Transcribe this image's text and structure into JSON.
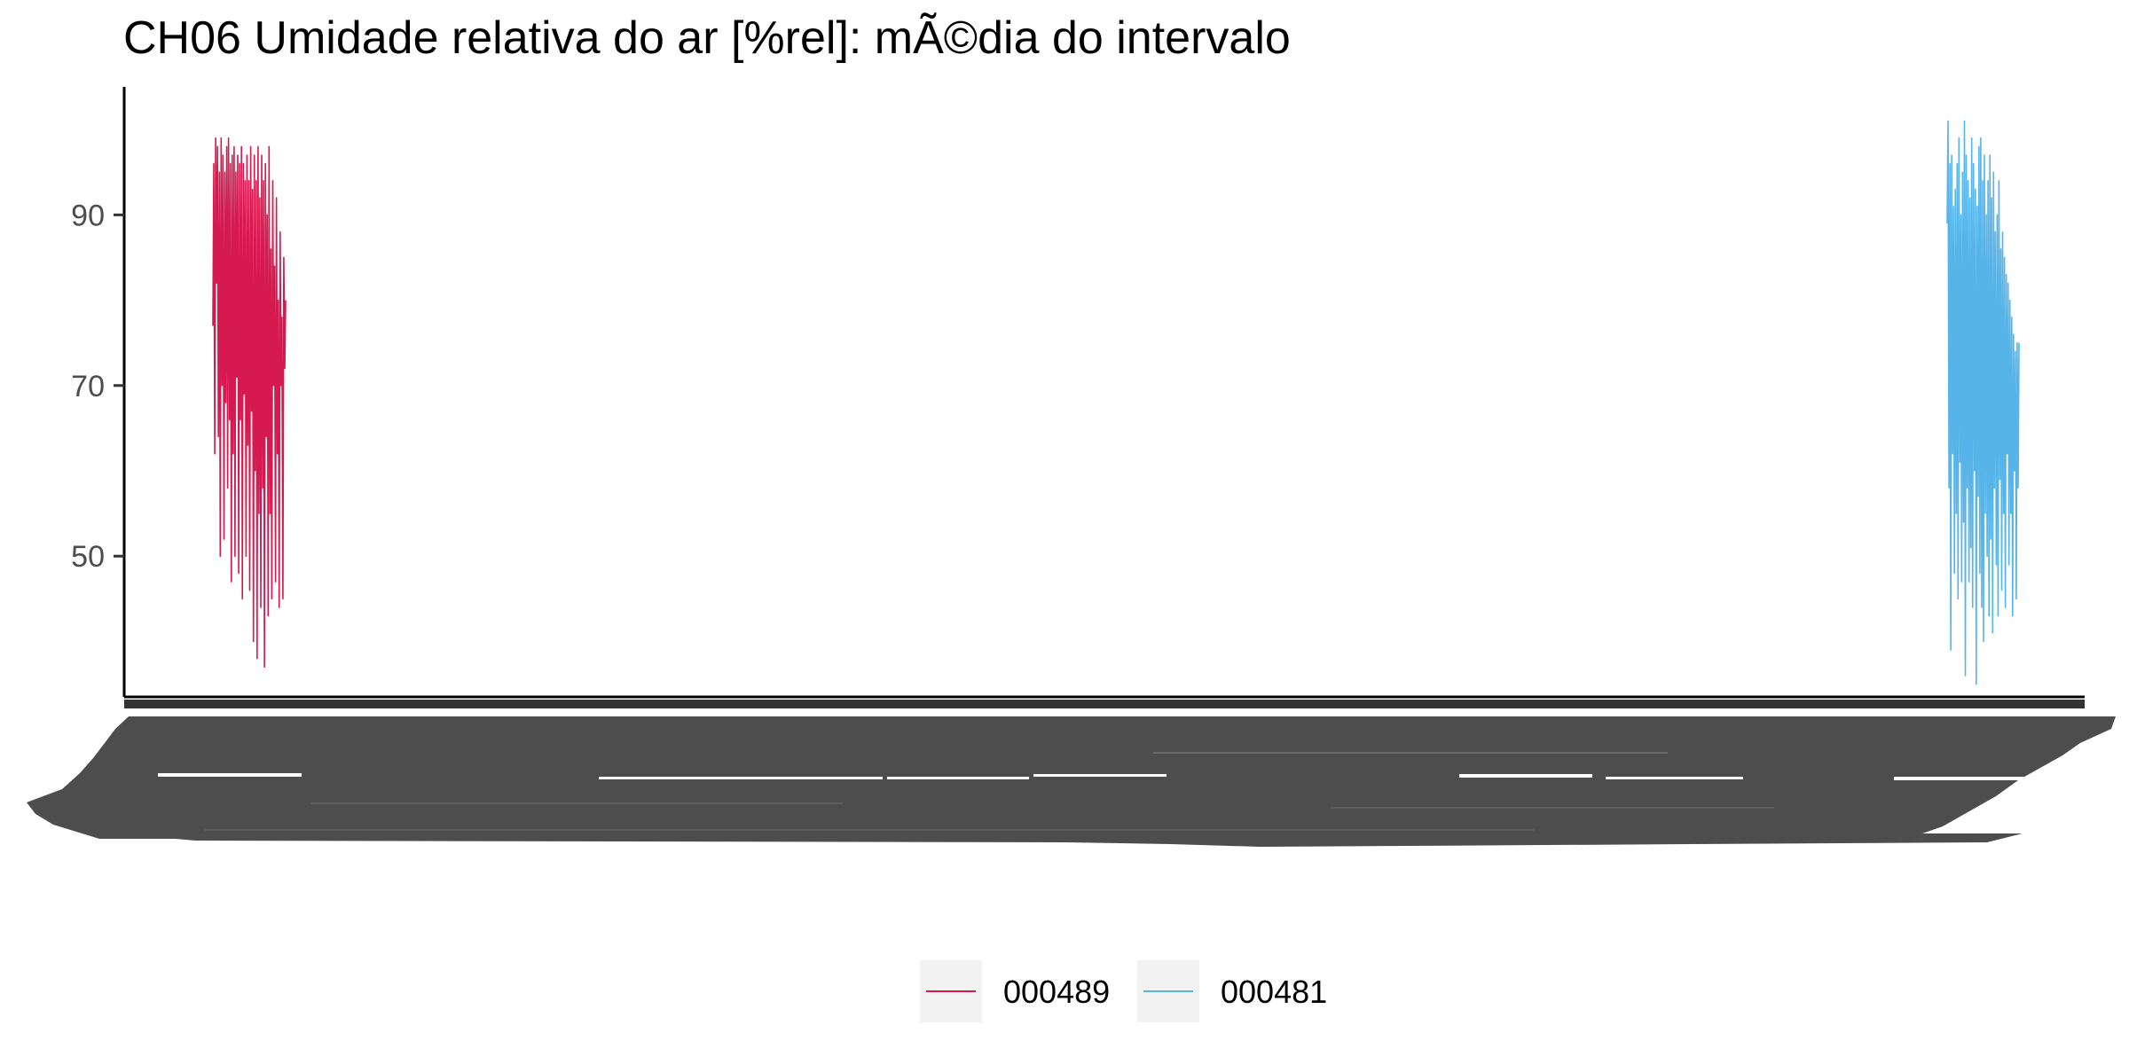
{
  "chart_data": {
    "type": "line",
    "title": "CH06 Umidade relativa do ar [%rel]: mÃ©dia do intervalo",
    "xlabel": "",
    "ylabel": "",
    "ylim": [
      33.5,
      105
    ],
    "yticks": [
      50,
      70,
      90
    ],
    "grid": false,
    "legend_position": "bottom",
    "x_tick_labels_unreadable": true,
    "series": [
      {
        "name": "000489",
        "color": "#d6194f",
        "x": [
          1,
          2,
          3,
          4,
          5,
          6,
          7,
          8,
          9,
          10,
          11,
          12,
          13,
          14,
          15,
          16,
          17,
          18,
          19,
          20,
          21,
          22,
          23,
          24,
          25,
          26,
          27,
          28,
          29,
          30,
          31,
          32,
          33,
          34,
          35,
          36,
          37,
          38,
          39,
          40,
          41,
          42,
          43,
          44,
          45,
          46,
          47,
          48,
          49,
          50,
          51,
          52,
          53,
          54,
          55,
          56,
          57,
          58,
          59,
          60,
          61,
          62,
          63,
          64,
          65,
          66,
          67,
          68,
          69,
          70,
          71,
          72,
          73,
          74,
          75,
          76,
          77,
          78,
          79,
          80
        ],
        "values": [
          77,
          96,
          62,
          99,
          82,
          98,
          64,
          95,
          50,
          99,
          70,
          97,
          52,
          95,
          68,
          98,
          58,
          99,
          66,
          96,
          47,
          97,
          62,
          98,
          50,
          95,
          71,
          97,
          48,
          96,
          66,
          98,
          45,
          96,
          69,
          94,
          50,
          97,
          63,
          94,
          46,
          98,
          67,
          93,
          40,
          97,
          60,
          94,
          38,
          98,
          55,
          92,
          44,
          97,
          58,
          94,
          37,
          96,
          64,
          90,
          43,
          98,
          55,
          86,
          45,
          94,
          70,
          84,
          47,
          92,
          62,
          80,
          44,
          88,
          70,
          78,
          45,
          85,
          72,
          80
        ]
      },
      {
        "name": "000481",
        "color": "#56b4e9",
        "x": [
          1,
          2,
          3,
          4,
          5,
          6,
          7,
          8,
          9,
          10,
          11,
          12,
          13,
          14,
          15,
          16,
          17,
          18,
          19,
          20,
          21,
          22,
          23,
          24,
          25,
          26,
          27,
          28,
          29,
          30,
          31,
          32,
          33,
          34,
          35,
          36,
          37,
          38,
          39,
          40,
          41,
          42,
          43,
          44,
          45,
          46,
          47,
          48,
          49,
          50,
          51,
          52,
          53,
          54,
          55,
          56,
          57,
          58,
          59,
          60,
          61,
          62,
          63,
          64,
          65,
          66,
          67,
          68,
          69,
          70,
          71,
          72,
          73,
          74,
          75,
          76,
          77,
          78,
          79,
          80
        ],
        "values": [
          89,
          101,
          58,
          96,
          39,
          97,
          62,
          91,
          48,
          93,
          55,
          96,
          45,
          99,
          61,
          90,
          47,
          95,
          54,
          101,
          36,
          97,
          58,
          94,
          47,
          92,
          51,
          99,
          44,
          96,
          60,
          93,
          35,
          91,
          57,
          98,
          48,
          99,
          44,
          94,
          40,
          97,
          55,
          90,
          50,
          94,
          43,
          97,
          52,
          92,
          41,
          95,
          58,
          88,
          49,
          90,
          43,
          94,
          59,
          86,
          46,
          88,
          55,
          85,
          44,
          83,
          62,
          82,
          49,
          80,
          55,
          78,
          43,
          76,
          60,
          74,
          45,
          75,
          58,
          75
        ]
      }
    ]
  }
}
